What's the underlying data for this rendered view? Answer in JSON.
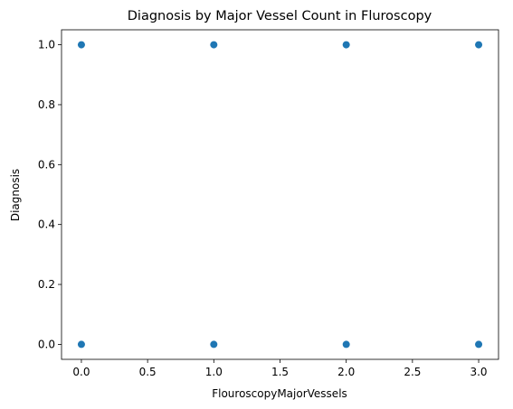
{
  "chart_data": {
    "type": "scatter",
    "title": "Diagnosis by Major Vessel Count in Fluroscopy",
    "xlabel": "FlouroscopyMajorVessels",
    "ylabel": "Diagnosis",
    "xlim": [
      -0.15,
      3.15
    ],
    "ylim": [
      -0.05,
      1.05
    ],
    "xticks": [
      0.0,
      0.5,
      1.0,
      1.5,
      2.0,
      2.5,
      3.0
    ],
    "xtick_labels": [
      "0.0",
      "0.5",
      "1.0",
      "1.5",
      "2.0",
      "2.5",
      "3.0"
    ],
    "yticks": [
      0.0,
      0.2,
      0.4,
      0.6,
      0.8,
      1.0
    ],
    "ytick_labels": [
      "0.0",
      "0.2",
      "0.4",
      "0.6",
      "0.8",
      "1.0"
    ],
    "grid": false,
    "points": [
      {
        "x": 0,
        "y": 1
      },
      {
        "x": 1,
        "y": 1
      },
      {
        "x": 2,
        "y": 1
      },
      {
        "x": 3,
        "y": 1
      },
      {
        "x": 0,
        "y": 0
      },
      {
        "x": 1,
        "y": 0
      },
      {
        "x": 2,
        "y": 0
      },
      {
        "x": 3,
        "y": 0
      }
    ],
    "marker_color": "#1f77b4"
  }
}
